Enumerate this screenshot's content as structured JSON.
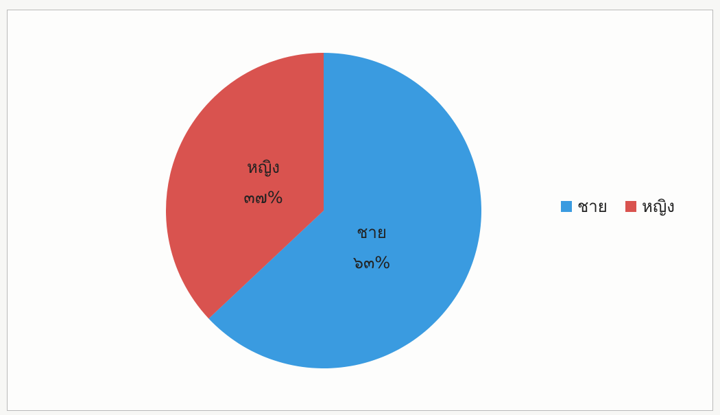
{
  "chart_data": {
    "type": "pie",
    "categories": [
      "ชาย",
      "หญิง"
    ],
    "values": [
      63,
      37
    ],
    "data_labels": [
      "๖๓%",
      "๓๗%"
    ],
    "colors": [
      "#3a9be0",
      "#d9534f"
    ],
    "legend": {
      "position": "right",
      "entries": [
        "ชาย",
        "หญิง"
      ]
    }
  }
}
